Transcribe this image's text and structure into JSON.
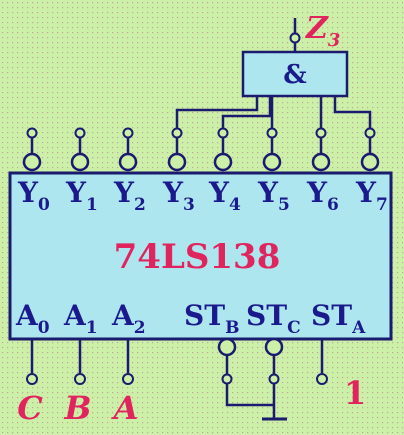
{
  "colors": {
    "background": "#ccf0a8",
    "chip_fill": "#aee6f0",
    "wire": "#1a1a6e",
    "label_blue": "#1a1a8c",
    "label_red": "#e0245e",
    "dots": "#c0a898"
  },
  "chip": {
    "name": "74LS138",
    "outputs": [
      {
        "main": "Y",
        "sub": "0"
      },
      {
        "main": "Y",
        "sub": "1"
      },
      {
        "main": "Y",
        "sub": "2"
      },
      {
        "main": "Y",
        "sub": "3"
      },
      {
        "main": "Y",
        "sub": "4"
      },
      {
        "main": "Y",
        "sub": "5"
      },
      {
        "main": "Y",
        "sub": "6"
      },
      {
        "main": "Y",
        "sub": "7"
      }
    ],
    "address_inputs": [
      {
        "main": "A",
        "sub": "0"
      },
      {
        "main": "A",
        "sub": "1"
      },
      {
        "main": "A",
        "sub": "2"
      }
    ],
    "enable_inputs": [
      {
        "main": "ST",
        "sub": "B"
      },
      {
        "main": "ST",
        "sub": "C"
      },
      {
        "main": "ST",
        "sub": "A"
      }
    ]
  },
  "gate": {
    "symbol": "&"
  },
  "output_label": {
    "main": "Z",
    "sub": "3"
  },
  "input_labels": [
    "C",
    "B",
    "A"
  ],
  "st_a_value": "1"
}
